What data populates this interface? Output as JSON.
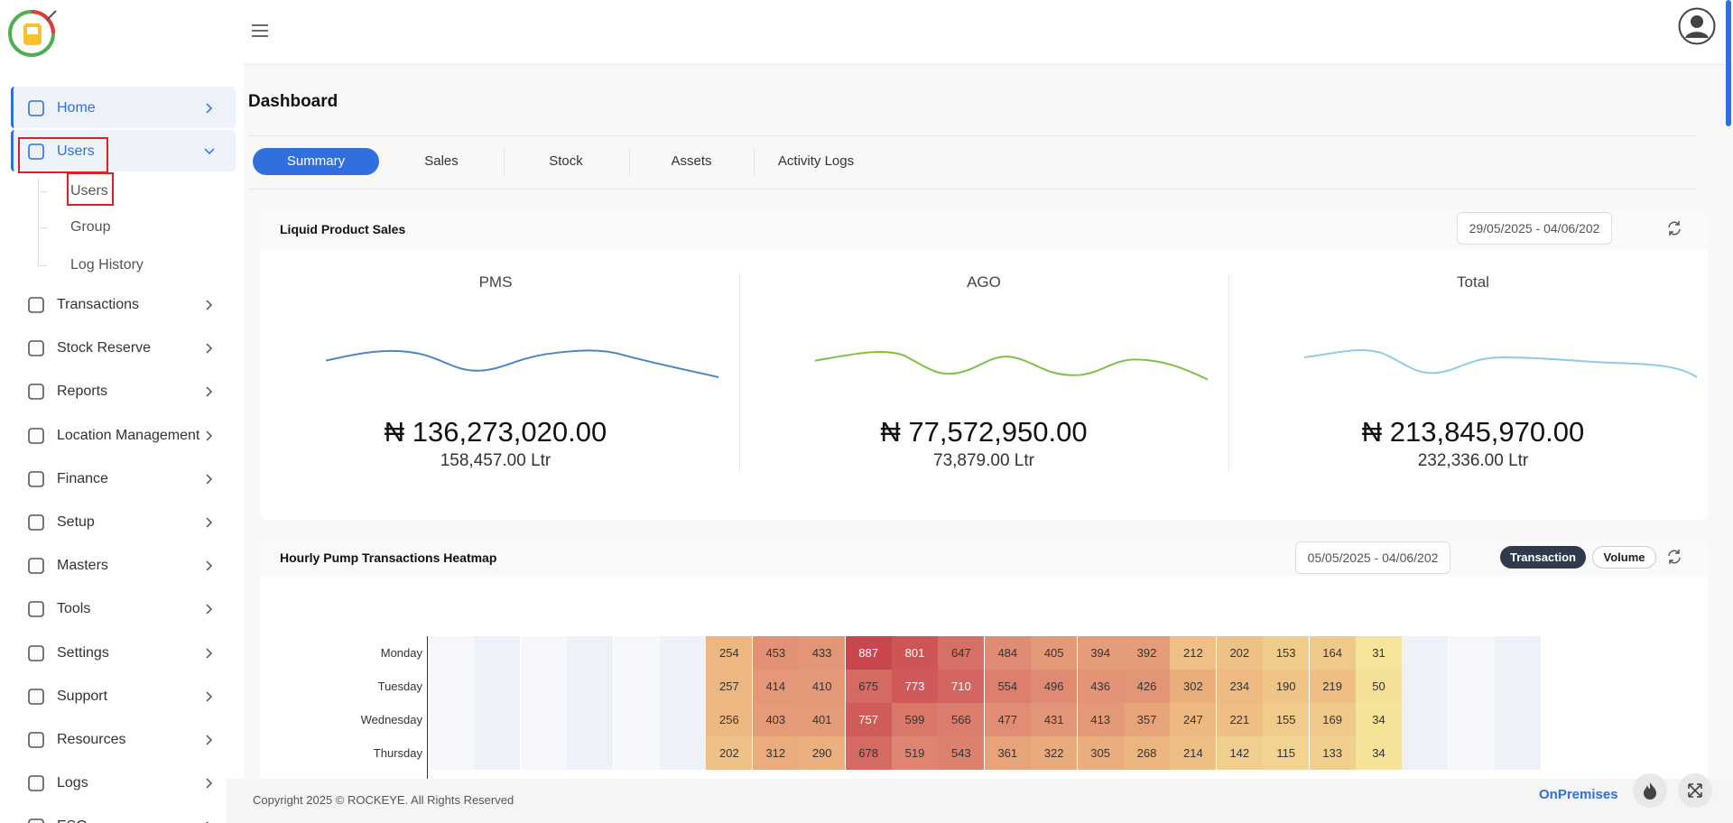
{
  "sidebar": {
    "items": [
      "Home",
      "Users",
      "Transactions",
      "Stock Reserve",
      "Reports",
      "Location Management",
      "Finance",
      "Setup",
      "Masters",
      "Tools",
      "Settings",
      "Support",
      "Resources",
      "Logs",
      "ESG"
    ],
    "submenu": [
      "Users",
      "Group",
      "Log History"
    ]
  },
  "page_title": "Dashboard",
  "tabs": [
    "Summary",
    "Sales",
    "Stock",
    "Assets",
    "Activity Logs"
  ],
  "liquid_sales": {
    "title": "Liquid Product Sales",
    "date_range": "29/05/2025 - 04/06/202",
    "products": [
      {
        "name": "PMS",
        "amount": "₦ 136,273,020.00",
        "volume": "158,457.00 Ltr"
      },
      {
        "name": "AGO",
        "amount": "₦ 77,572,950.00",
        "volume": "73,879.00 Ltr"
      },
      {
        "name": "Total",
        "amount": "₦ 213,845,970.00",
        "volume": "232,336.00 Ltr"
      }
    ]
  },
  "heatmap": {
    "title": "Hourly Pump Transactions Heatmap",
    "date_range": "05/05/2025 - 04/06/202",
    "toggles": [
      "Transaction",
      "Volume"
    ],
    "rows": [
      {
        "day": "Monday",
        "values": [
          null,
          null,
          null,
          null,
          null,
          null,
          254,
          453,
          433,
          887,
          801,
          647,
          484,
          405,
          394,
          392,
          212,
          202,
          153,
          164,
          31,
          null,
          null,
          null
        ]
      },
      {
        "day": "Tuesday",
        "values": [
          null,
          null,
          null,
          null,
          null,
          null,
          257,
          414,
          410,
          675,
          773,
          710,
          554,
          496,
          436,
          426,
          302,
          234,
          190,
          219,
          50,
          null,
          null,
          null
        ]
      },
      {
        "day": "Wednesday",
        "values": [
          null,
          null,
          null,
          null,
          null,
          null,
          256,
          403,
          401,
          757,
          599,
          566,
          477,
          431,
          413,
          357,
          247,
          221,
          155,
          169,
          34,
          null,
          null,
          null
        ]
      },
      {
        "day": "Thursday",
        "values": [
          null,
          null,
          null,
          null,
          null,
          null,
          202,
          312,
          290,
          678,
          519,
          543,
          361,
          322,
          305,
          268,
          214,
          142,
          115,
          133,
          34,
          null,
          null,
          null
        ]
      }
    ]
  },
  "footer": {
    "copyright": "Copyright 2025 © ROCKEYE. All Rights Reserved",
    "mode": "OnPremises"
  }
}
